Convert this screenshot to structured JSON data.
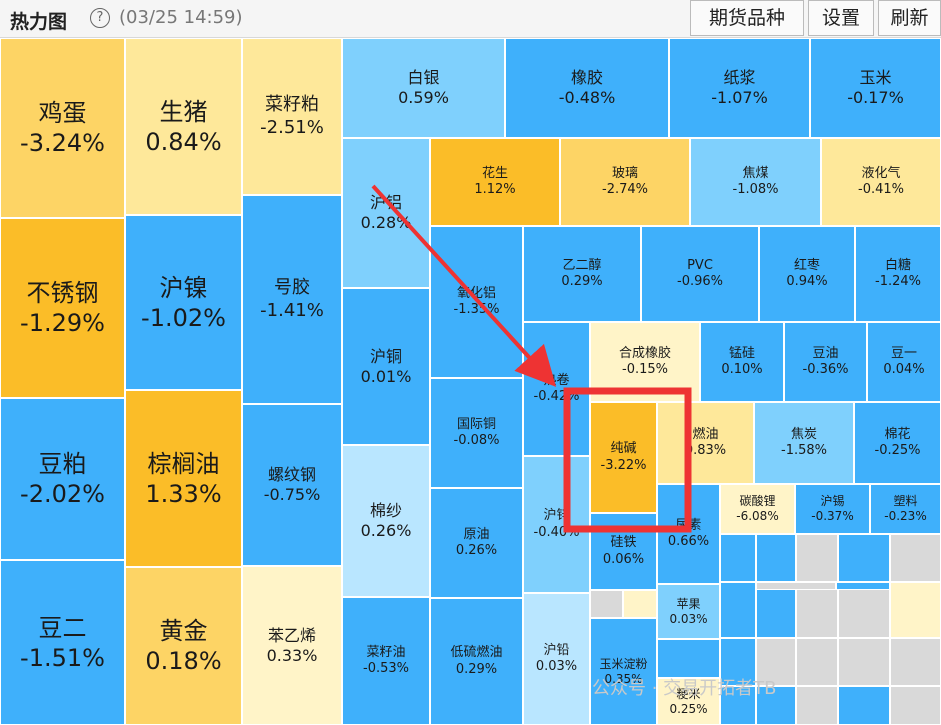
{
  "header": {
    "title": "热力图",
    "help_glyph": "?",
    "timestamp": "(03/25 14:59)",
    "buttons": [
      "期货品种",
      "设置",
      "刷新"
    ]
  },
  "colors": {
    "up_strong": "#fbbd28",
    "up_mid": "#fdd465",
    "up_light": "#fee89a",
    "up_pale": "#fff4c8",
    "down_strong": "#26a4f8",
    "down_mid": "#3fb0fb",
    "down_light": "#7fd0fd",
    "down_pale": "#b9e6ff",
    "empty": "#d9d9d9",
    "highlight_box": "#ee3333",
    "arrow": "#ee3333"
  },
  "tiles": [
    {
      "name": "鸡蛋",
      "pct": "-3.24%",
      "color": "up_mid"
    },
    {
      "name": "不锈钢",
      "pct": "-1.29%",
      "color": "up_strong"
    },
    {
      "name": "豆粕",
      "pct": "-2.02%",
      "color": "down_mid"
    },
    {
      "name": "豆二",
      "pct": "-1.51%",
      "color": "down_mid"
    },
    {
      "name": "生猪",
      "pct": "0.84%",
      "color": "up_light"
    },
    {
      "name": "沪镍",
      "pct": "-1.02%",
      "color": "down_mid"
    },
    {
      "name": "棕榈油",
      "pct": "1.33%",
      "color": "up_strong"
    },
    {
      "name": "黄金",
      "pct": "0.18%",
      "color": "up_mid"
    },
    {
      "name": "菜籽粕",
      "pct": "-2.51%",
      "color": "up_light"
    },
    {
      "name": "号胶",
      "pct": "-1.41%",
      "color": "down_mid"
    },
    {
      "name": "螺纹钢",
      "pct": "-0.75%",
      "color": "down_mid"
    },
    {
      "name": "苯乙烯",
      "pct": "0.33%",
      "color": "up_pale"
    },
    {
      "name": "白银",
      "pct": "0.59%",
      "color": "down_light"
    },
    {
      "name": "橡胶",
      "pct": "-0.48%",
      "color": "down_mid"
    },
    {
      "name": "纸浆",
      "pct": "-1.07%",
      "color": "down_mid"
    },
    {
      "name": "玉米",
      "pct": "-0.17%",
      "color": "down_mid"
    },
    {
      "name": "沪铝",
      "pct": "0.28%",
      "color": "down_light"
    },
    {
      "name": "沪铜",
      "pct": "0.01%",
      "color": "down_mid"
    },
    {
      "name": "棉纱",
      "pct": "0.26%",
      "color": "down_pale"
    },
    {
      "name": "菜籽油",
      "pct": "-0.53%",
      "color": "down_mid"
    },
    {
      "name": "花生",
      "pct": "1.12%",
      "color": "up_strong"
    },
    {
      "name": "玻璃",
      "pct": "-2.74%",
      "color": "up_mid"
    },
    {
      "name": "焦煤",
      "pct": "-1.08%",
      "color": "down_light"
    },
    {
      "name": "液化气",
      "pct": "-0.41%",
      "color": "up_light"
    },
    {
      "name": "氧化铝",
      "pct": "-1.35%",
      "color": "down_mid"
    },
    {
      "name": "乙二醇",
      "pct": "0.29%",
      "color": "down_mid"
    },
    {
      "name": "PVC",
      "pct": "-0.96%",
      "color": "down_mid"
    },
    {
      "name": "红枣",
      "pct": "0.94%",
      "color": "down_mid"
    },
    {
      "name": "白糖",
      "pct": "-1.24%",
      "color": "down_mid"
    },
    {
      "name": "国际铜",
      "pct": "-0.08%",
      "color": "down_mid"
    },
    {
      "name": "原油",
      "pct": "0.26%",
      "color": "down_mid"
    },
    {
      "name": "低硫燃油",
      "pct": "0.29%",
      "color": "down_mid"
    },
    {
      "name": "热卷",
      "pct": "-0.42%",
      "color": "down_mid"
    },
    {
      "name": "合成橡胶",
      "pct": "-0.15%",
      "color": "up_pale"
    },
    {
      "name": "锰硅",
      "pct": "0.10%",
      "color": "down_mid"
    },
    {
      "name": "豆油",
      "pct": "-0.36%",
      "color": "down_mid"
    },
    {
      "name": "豆一",
      "pct": "0.04%",
      "color": "down_mid"
    },
    {
      "name": "纯碱",
      "pct": "-3.22%",
      "color": "up_strong"
    },
    {
      "name": "燃油",
      "pct": "0.83%",
      "color": "up_light"
    },
    {
      "name": "焦炭",
      "pct": "-1.58%",
      "color": "down_light"
    },
    {
      "name": "棉花",
      "pct": "-0.25%",
      "color": "down_mid"
    },
    {
      "name": "沪锌",
      "pct": "-0.40%",
      "color": "down_light"
    },
    {
      "name": "沪铅",
      "pct": "0.03%",
      "color": "down_pale"
    },
    {
      "name": "硅铁",
      "pct": "0.06%",
      "color": "down_mid"
    },
    {
      "name": "尿素",
      "pct": "0.66%",
      "color": "down_mid"
    },
    {
      "name": "碳酸锂",
      "pct": "-6.08%",
      "color": "up_pale"
    },
    {
      "name": "沪锡",
      "pct": "-0.37%",
      "color": "down_mid"
    },
    {
      "name": "塑料",
      "pct": "-0.23%",
      "color": "down_mid"
    },
    {
      "name": "苹果",
      "pct": "0.03%",
      "color": "down_light"
    },
    {
      "name": "玉米淀粉",
      "pct": "0.35%",
      "color": "down_mid"
    },
    {
      "name": "粳米",
      "pct": "0.25%",
      "color": "up_pale"
    }
  ],
  "empty_tile_colors": [
    "down_mid",
    "down_mid",
    "empty",
    "down_mid",
    "empty",
    "down_mid",
    "down_mid",
    "empty",
    "empty",
    "up_pale",
    "down_mid",
    "empty",
    "empty",
    "empty",
    "empty",
    "down_mid",
    "down_mid",
    "empty",
    "down_mid",
    "empty",
    "down_mid",
    "empty",
    "up_pale",
    "down_mid",
    "empty"
  ],
  "watermark": "公众号 · 交易开拓者TB"
}
